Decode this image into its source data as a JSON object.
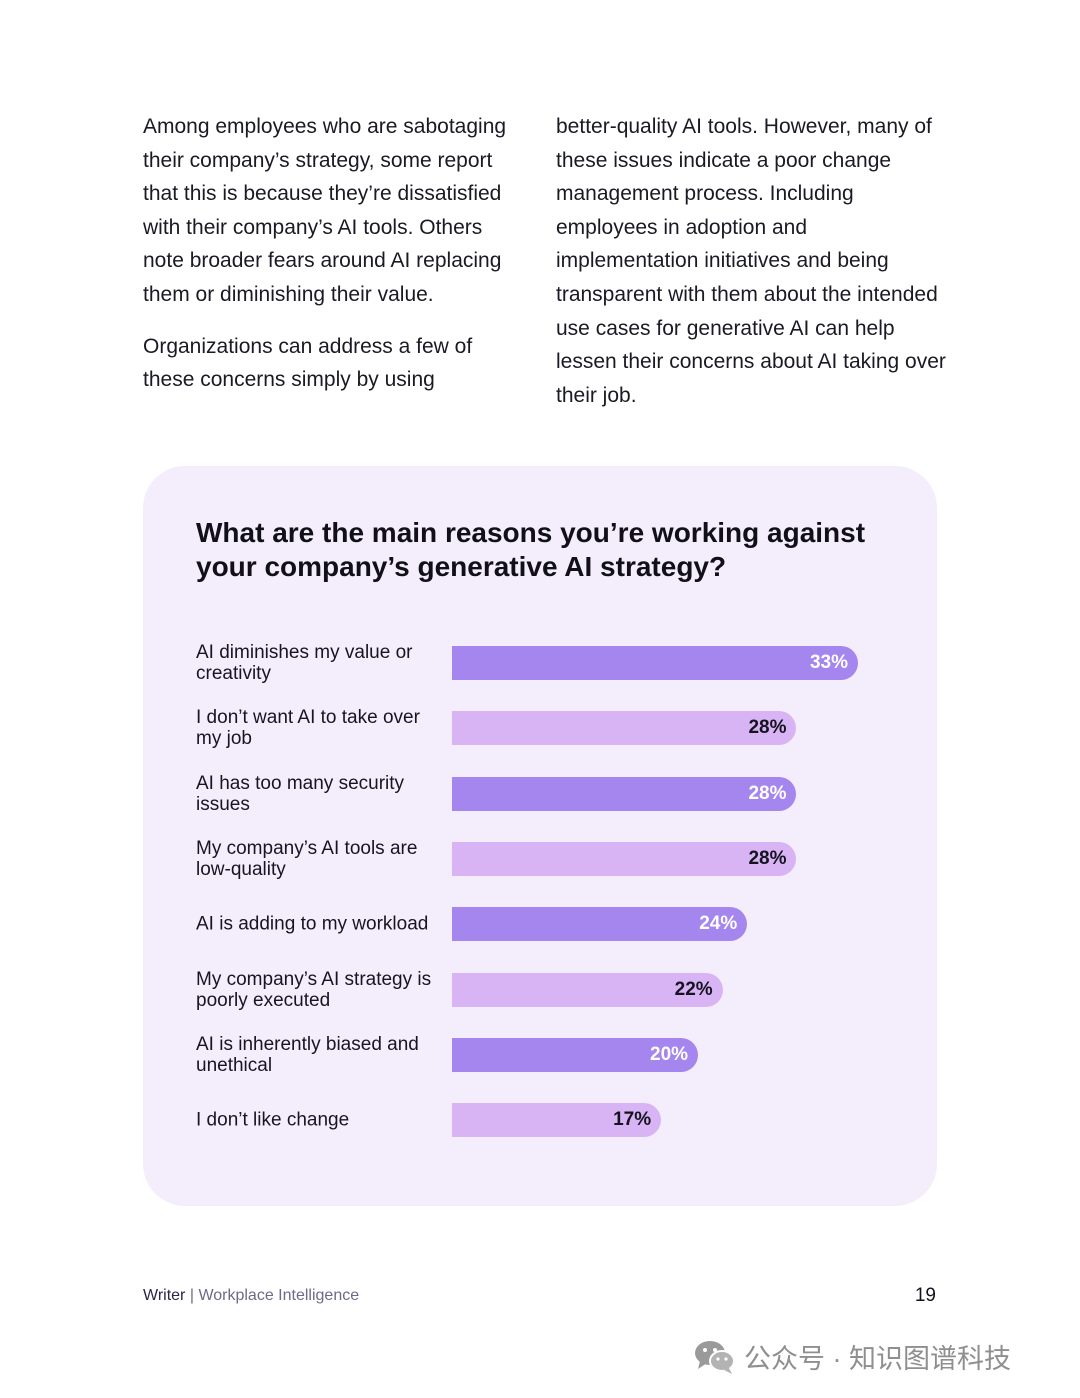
{
  "body_text": {
    "left_paragraphs": [
      "Among employees who are sabotaging their company’s strategy, some report that this is because they’re dissatisfied with their company’s AI tools. Others note broader fears around AI replacing them or diminishing their value.",
      "Organizations can address a few of these concerns simply by using"
    ],
    "right_paragraphs": [
      "better-quality AI tools. However, many of these issues indicate a poor change management process. Including employees in adoption and implementation initiatives and being transparent with them about the intended use cases for generative AI can help lessen their concerns about AI taking over their job."
    ]
  },
  "colors": {
    "card_background": "#f4eefc",
    "bar_dark": "#a585ee",
    "bar_light": "#d8b4f5",
    "label_on_dark": "#ffffff",
    "label_on_light": "#15131f"
  },
  "chart_data": {
    "type": "bar",
    "orientation": "horizontal",
    "title": "What are the main reasons you’re working against your company’s generative AI strategy?",
    "categories": [
      "AI diminishes my value or creativity",
      "I don’t want AI to take over my job",
      "AI has too many security issues",
      "My company’s AI tools are low-quality",
      "AI is adding to my workload",
      "My company’s AI strategy is poorly executed",
      "AI is inherently biased and unethical",
      "I don’t like change"
    ],
    "values": [
      33,
      28,
      28,
      28,
      24,
      22,
      20,
      17
    ],
    "value_labels": [
      "33%",
      "28%",
      "28%",
      "28%",
      "24%",
      "22%",
      "20%",
      "17%"
    ],
    "unit": "%",
    "xlim": [
      0,
      33
    ],
    "bar_color_pattern": [
      "dark",
      "light"
    ],
    "grid": false,
    "legend": "none"
  },
  "footer": {
    "brand": "Writer",
    "separator": "|",
    "subtitle": "Workplace Intelligence",
    "page_number": "19"
  },
  "watermark": {
    "icon": "wechat-icon",
    "text": "公众号 · 知识图谱科技"
  }
}
